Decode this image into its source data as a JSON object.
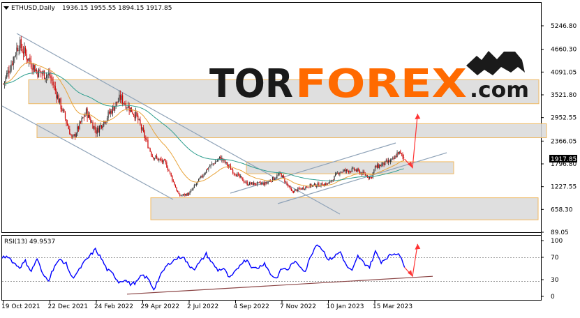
{
  "header": {
    "symbol": "ETHUSD,Daily",
    "ohlc": "1936.15 1955.55 1894.15 1917.85"
  },
  "logo": {
    "part1": "TOR",
    "part2": "FOREX",
    "part3": ".com"
  },
  "price_badge": "1917.85",
  "rsi_header": "RSI(13) 49.9537",
  "colors": {
    "background": "#ffffff",
    "bull_candle": "#333333",
    "bear_candle": "#cc0000",
    "ma_fast": "#e8a33a",
    "ma_slow": "#2e9e8f",
    "channel": "#8fa3b8",
    "zone_fill": "#d9d9d9",
    "zone_border": "#f0b860",
    "forecast_arrow": "#ff3333",
    "rsi_line": "#0000ff",
    "rsi_trendline": "#8b4545",
    "logo_dark": "#1a1a1a",
    "logo_orange": "#ff6a00"
  },
  "chart_data": [
    {
      "type": "candlestick",
      "title": "ETHUSD,Daily",
      "price_axis_ticks": [
        "5246.80",
        "4660.30",
        "4091.05",
        "3521.80",
        "2952.55",
        "2366.05",
        "1796.80",
        "1227.55",
        "658.30",
        "89.05"
      ],
      "date_axis_ticks": [
        "19 Oct 2021",
        "22 Dec 2021",
        "24 Feb 2022",
        "29 Apr 2022",
        "2 Jul 2022",
        "4 Sep 2022",
        "7 Nov 2022",
        "10 Jan 2023",
        "15 Mar 2023"
      ],
      "ylim": [
        89.05,
        5246.8
      ],
      "last_close": 1917.85,
      "close_path": [
        [
          "2021-10-19",
          3800
        ],
        [
          "2021-11-09",
          4800
        ],
        [
          "2021-12-04",
          4100
        ],
        [
          "2021-12-22",
          4000
        ],
        [
          "2022-01-07",
          3200
        ],
        [
          "2022-01-22",
          2400
        ],
        [
          "2022-02-10",
          3100
        ],
        [
          "2022-02-24",
          2600
        ],
        [
          "2022-03-29",
          3450
        ],
        [
          "2022-04-20",
          3000
        ],
        [
          "2022-05-12",
          2000
        ],
        [
          "2022-05-31",
          1800
        ],
        [
          "2022-06-18",
          1000
        ],
        [
          "2022-07-02",
          1050
        ],
        [
          "2022-07-28",
          1700
        ],
        [
          "2022-08-14",
          1950
        ],
        [
          "2022-09-04",
          1550
        ],
        [
          "2022-09-20",
          1300
        ],
        [
          "2022-10-15",
          1300
        ],
        [
          "2022-11-05",
          1550
        ],
        [
          "2022-11-20",
          1100
        ],
        [
          "2022-12-15",
          1250
        ],
        [
          "2023-01-10",
          1300
        ],
        [
          "2023-01-25",
          1600
        ],
        [
          "2023-02-15",
          1650
        ],
        [
          "2023-03-10",
          1450
        ],
        [
          "2023-03-15",
          1700
        ],
        [
          "2023-04-10",
          1900
        ],
        [
          "2023-04-16",
          2100
        ],
        [
          "2023-04-25",
          1917.85
        ]
      ],
      "moving_averages": [
        {
          "name": "fast MA",
          "color": "#e8a33a"
        },
        {
          "name": "slow MA",
          "color": "#2e9e8f"
        }
      ],
      "zones": [
        {
          "from": 3300,
          "to": 3900
        },
        {
          "from": 2450,
          "to": 2800
        },
        {
          "from": 1550,
          "to": 1850
        },
        {
          "from": 400,
          "to": 950
        }
      ],
      "forecast": [
        "down to 1700",
        "then up to 3050"
      ]
    },
    {
      "type": "line",
      "title": "RSI(13) 49.9537",
      "indicator": "RSI",
      "period": 13,
      "last_value": 49.9537,
      "y_ticks": [
        "100",
        "70",
        "30",
        "0"
      ],
      "ylim": [
        0,
        100
      ],
      "levels": [
        70,
        30
      ],
      "values": [
        70,
        72,
        60,
        52,
        63,
        45,
        68,
        38,
        30,
        55,
        66,
        58,
        33,
        44,
        60,
        72,
        84,
        68,
        48,
        40,
        26,
        30,
        22,
        25,
        38,
        32,
        13,
        34,
        52,
        62,
        68,
        72,
        55,
        50,
        62,
        76,
        60,
        47,
        50,
        32,
        44,
        60,
        66,
        50,
        52,
        60,
        40,
        32,
        50,
        48,
        62,
        55,
        45,
        75,
        95,
        83,
        65,
        72,
        80,
        55,
        45,
        72,
        60,
        53,
        80,
        62,
        70,
        76,
        78,
        52
      ],
      "forecast": [
        "down to 36",
        "then up to 94"
      ]
    }
  ]
}
